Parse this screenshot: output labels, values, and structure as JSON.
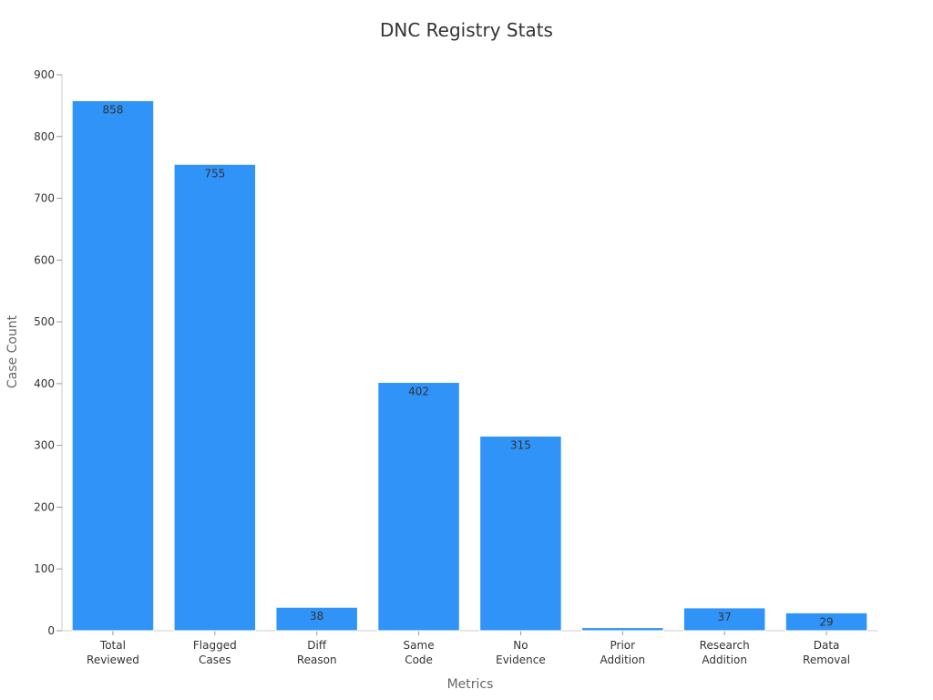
{
  "chart_data": {
    "type": "bar",
    "title": "DNC Registry Stats",
    "xlabel": "Metrics",
    "ylabel": "Case Count",
    "ylim": [
      0,
      900
    ],
    "yticks": [
      0,
      100,
      200,
      300,
      400,
      500,
      600,
      700,
      800,
      900
    ],
    "categories": [
      [
        "Total",
        "Reviewed"
      ],
      [
        "Flagged",
        "Cases"
      ],
      [
        "Diff",
        "Reason"
      ],
      [
        "Same",
        "Code"
      ],
      [
        "No",
        "Evidence"
      ],
      [
        "Prior",
        "Addition"
      ],
      [
        "Research",
        "Addition"
      ],
      [
        "Data",
        "Removal"
      ]
    ],
    "values": [
      858,
      755,
      38,
      402,
      315,
      5,
      37,
      29
    ],
    "data_labels": [
      "858",
      "755",
      "38",
      "402",
      "315",
      "",
      "37",
      "29"
    ],
    "bar_color": "#3093f8",
    "grid": false
  }
}
